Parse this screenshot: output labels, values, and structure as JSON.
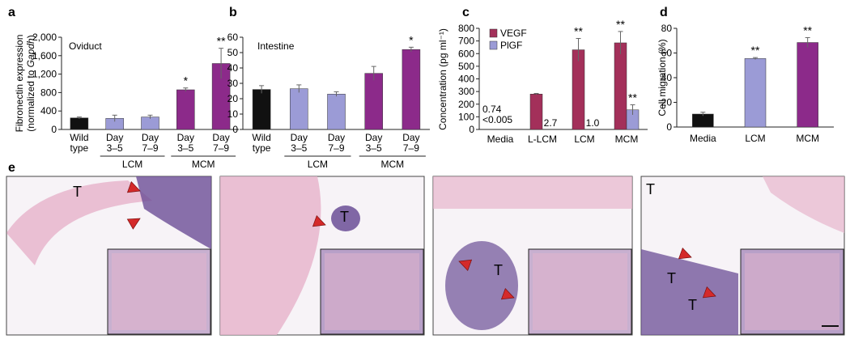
{
  "colors": {
    "wild_type": "#111111",
    "lcm": "#9b9bd6",
    "mcm": "#8c2a8a",
    "vegf": "#a3305a",
    "plgf": "#9b9bd6",
    "tissue_pink": "#e7b5cc",
    "tissue_purple": "#6b4e96",
    "arrowhead": "#d42a2a"
  },
  "panel_letters": [
    "a",
    "b",
    "c",
    "d",
    "e"
  ],
  "chart_data": [
    {
      "panel": "a",
      "type": "bar",
      "title": "Oviduct",
      "ylabel": "Fibronectin expression\n(normalized to Gapdh)",
      "ylim": [
        0,
        2000
      ],
      "yticks": [
        "0",
        "400",
        "800",
        "1,200",
        "1,600",
        "2,000"
      ],
      "ytick_values": [
        0,
        400,
        800,
        1200,
        1600,
        2000
      ],
      "categories": [
        "Wild\ntype",
        "Day\n3–5",
        "Day\n7–9",
        "Day\n3–5",
        "Day\n7–9"
      ],
      "groups": [
        {
          "label": "LCM",
          "from": 1,
          "to": 2
        },
        {
          "label": "MCM",
          "from": 3,
          "to": 4
        }
      ],
      "values": [
        250,
        240,
        270,
        860,
        1430
      ],
      "errors": [
        20,
        70,
        40,
        40,
        330
      ],
      "bar_colors": [
        "wild_type",
        "lcm",
        "lcm",
        "mcm",
        "mcm"
      ],
      "significance": [
        "",
        "",
        "",
        "*",
        "**"
      ]
    },
    {
      "panel": "b",
      "type": "bar",
      "title": "Intestine",
      "ylabel": "",
      "ylim": [
        0,
        60
      ],
      "yticks": [
        "0",
        "10",
        "20",
        "30",
        "40",
        "50",
        "60"
      ],
      "ytick_values": [
        0,
        10,
        20,
        30,
        40,
        50,
        60
      ],
      "categories": [
        "Wild\ntype",
        "Day\n3–5",
        "Day\n7–9",
        "Day\n3–5",
        "Day\n7–9"
      ],
      "groups": [
        {
          "label": "LCM",
          "from": 1,
          "to": 2
        },
        {
          "label": "MCM",
          "from": 3,
          "to": 4
        }
      ],
      "values": [
        26,
        26.5,
        23,
        36.5,
        52
      ],
      "errors": [
        2.5,
        2.5,
        1.5,
        4.5,
        1.5
      ],
      "bar_colors": [
        "wild_type",
        "lcm",
        "lcm",
        "mcm",
        "mcm"
      ],
      "significance": [
        "",
        "",
        "",
        "",
        "*"
      ]
    },
    {
      "panel": "c",
      "type": "bar",
      "title": "",
      "ylabel": "Concentration (pg ml⁻¹)",
      "ylim": [
        0,
        800
      ],
      "yticks": [
        "0",
        "100",
        "200",
        "300",
        "400",
        "500",
        "600",
        "700",
        "800"
      ],
      "ytick_values": [
        0,
        100,
        200,
        300,
        400,
        500,
        600,
        700,
        800
      ],
      "categories": [
        "Media",
        "L-LCM",
        "LCM",
        "MCM"
      ],
      "series": [
        {
          "name": "VEGF",
          "values": [
            0.74,
            280,
            630,
            685
          ],
          "errors": [
            0,
            5,
            90,
            90
          ],
          "significance": [
            "",
            "",
            "**",
            "**"
          ]
        },
        {
          "name": "PlGF",
          "values": [
            0.005,
            2.7,
            1.0,
            155
          ],
          "errors": [
            0,
            0,
            0,
            40
          ],
          "significance": [
            "",
            "",
            "",
            "**"
          ]
        }
      ],
      "value_labels": [
        {
          "text": "0.74",
          "category": 0,
          "series": 0
        },
        {
          "text": "<0.005",
          "category": 0,
          "series": 1
        },
        {
          "text": "2.7",
          "category": 1,
          "series": 1
        },
        {
          "text": "1.0",
          "category": 2,
          "series": 1
        }
      ],
      "legend_position": "top-left"
    },
    {
      "panel": "d",
      "type": "bar",
      "title": "",
      "ylabel": "Cell migration (%)",
      "ylim": [
        0,
        80
      ],
      "yticks": [
        "0",
        "20",
        "40",
        "60",
        "80"
      ],
      "ytick_values": [
        0,
        20,
        40,
        60,
        80
      ],
      "categories": [
        "Media",
        "LCM",
        "MCM"
      ],
      "values": [
        10.5,
        55.5,
        68.5
      ],
      "errors": [
        1.5,
        0.8,
        4
      ],
      "bar_colors": [
        "wild_type",
        "lcm",
        "mcm"
      ],
      "significance": [
        "",
        "**",
        "**"
      ]
    }
  ],
  "panel_e": {
    "images": [
      {
        "labels": [
          "T"
        ]
      },
      {
        "labels": [
          "T"
        ]
      },
      {
        "labels": [
          "T"
        ]
      },
      {
        "labels": [
          "T",
          "T",
          "T"
        ]
      }
    ]
  }
}
